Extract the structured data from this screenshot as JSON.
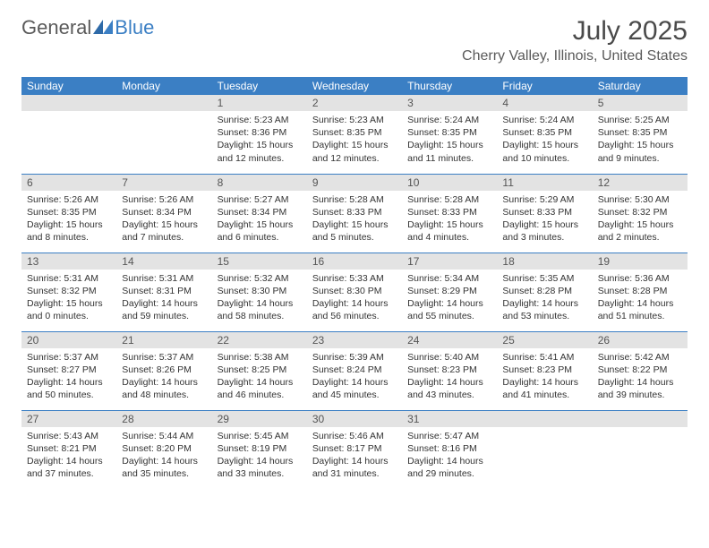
{
  "brand": {
    "part1": "General",
    "part2": "Blue"
  },
  "title": "July 2025",
  "location": "Cherry Valley, Illinois, United States",
  "colors": {
    "header_bg": "#3b7fc4",
    "header_fg": "#ffffff",
    "daynum_bg": "#e3e3e3",
    "rule": "#3b7fc4",
    "text": "#333333"
  },
  "dayHeaders": [
    "Sunday",
    "Monday",
    "Tuesday",
    "Wednesday",
    "Thursday",
    "Friday",
    "Saturday"
  ],
  "weeks": [
    [
      null,
      null,
      {
        "n": "1",
        "sr": "5:23 AM",
        "ss": "8:36 PM",
        "dl": "15 hours and 12 minutes."
      },
      {
        "n": "2",
        "sr": "5:23 AM",
        "ss": "8:35 PM",
        "dl": "15 hours and 12 minutes."
      },
      {
        "n": "3",
        "sr": "5:24 AM",
        "ss": "8:35 PM",
        "dl": "15 hours and 11 minutes."
      },
      {
        "n": "4",
        "sr": "5:24 AM",
        "ss": "8:35 PM",
        "dl": "15 hours and 10 minutes."
      },
      {
        "n": "5",
        "sr": "5:25 AM",
        "ss": "8:35 PM",
        "dl": "15 hours and 9 minutes."
      }
    ],
    [
      {
        "n": "6",
        "sr": "5:26 AM",
        "ss": "8:35 PM",
        "dl": "15 hours and 8 minutes."
      },
      {
        "n": "7",
        "sr": "5:26 AM",
        "ss": "8:34 PM",
        "dl": "15 hours and 7 minutes."
      },
      {
        "n": "8",
        "sr": "5:27 AM",
        "ss": "8:34 PM",
        "dl": "15 hours and 6 minutes."
      },
      {
        "n": "9",
        "sr": "5:28 AM",
        "ss": "8:33 PM",
        "dl": "15 hours and 5 minutes."
      },
      {
        "n": "10",
        "sr": "5:28 AM",
        "ss": "8:33 PM",
        "dl": "15 hours and 4 minutes."
      },
      {
        "n": "11",
        "sr": "5:29 AM",
        "ss": "8:33 PM",
        "dl": "15 hours and 3 minutes."
      },
      {
        "n": "12",
        "sr": "5:30 AM",
        "ss": "8:32 PM",
        "dl": "15 hours and 2 minutes."
      }
    ],
    [
      {
        "n": "13",
        "sr": "5:31 AM",
        "ss": "8:32 PM",
        "dl": "15 hours and 0 minutes."
      },
      {
        "n": "14",
        "sr": "5:31 AM",
        "ss": "8:31 PM",
        "dl": "14 hours and 59 minutes."
      },
      {
        "n": "15",
        "sr": "5:32 AM",
        "ss": "8:30 PM",
        "dl": "14 hours and 58 minutes."
      },
      {
        "n": "16",
        "sr": "5:33 AM",
        "ss": "8:30 PM",
        "dl": "14 hours and 56 minutes."
      },
      {
        "n": "17",
        "sr": "5:34 AM",
        "ss": "8:29 PM",
        "dl": "14 hours and 55 minutes."
      },
      {
        "n": "18",
        "sr": "5:35 AM",
        "ss": "8:28 PM",
        "dl": "14 hours and 53 minutes."
      },
      {
        "n": "19",
        "sr": "5:36 AM",
        "ss": "8:28 PM",
        "dl": "14 hours and 51 minutes."
      }
    ],
    [
      {
        "n": "20",
        "sr": "5:37 AM",
        "ss": "8:27 PM",
        "dl": "14 hours and 50 minutes."
      },
      {
        "n": "21",
        "sr": "5:37 AM",
        "ss": "8:26 PM",
        "dl": "14 hours and 48 minutes."
      },
      {
        "n": "22",
        "sr": "5:38 AM",
        "ss": "8:25 PM",
        "dl": "14 hours and 46 minutes."
      },
      {
        "n": "23",
        "sr": "5:39 AM",
        "ss": "8:24 PM",
        "dl": "14 hours and 45 minutes."
      },
      {
        "n": "24",
        "sr": "5:40 AM",
        "ss": "8:23 PM",
        "dl": "14 hours and 43 minutes."
      },
      {
        "n": "25",
        "sr": "5:41 AM",
        "ss": "8:23 PM",
        "dl": "14 hours and 41 minutes."
      },
      {
        "n": "26",
        "sr": "5:42 AM",
        "ss": "8:22 PM",
        "dl": "14 hours and 39 minutes."
      }
    ],
    [
      {
        "n": "27",
        "sr": "5:43 AM",
        "ss": "8:21 PM",
        "dl": "14 hours and 37 minutes."
      },
      {
        "n": "28",
        "sr": "5:44 AM",
        "ss": "8:20 PM",
        "dl": "14 hours and 35 minutes."
      },
      {
        "n": "29",
        "sr": "5:45 AM",
        "ss": "8:19 PM",
        "dl": "14 hours and 33 minutes."
      },
      {
        "n": "30",
        "sr": "5:46 AM",
        "ss": "8:17 PM",
        "dl": "14 hours and 31 minutes."
      },
      {
        "n": "31",
        "sr": "5:47 AM",
        "ss": "8:16 PM",
        "dl": "14 hours and 29 minutes."
      },
      null,
      null
    ]
  ]
}
